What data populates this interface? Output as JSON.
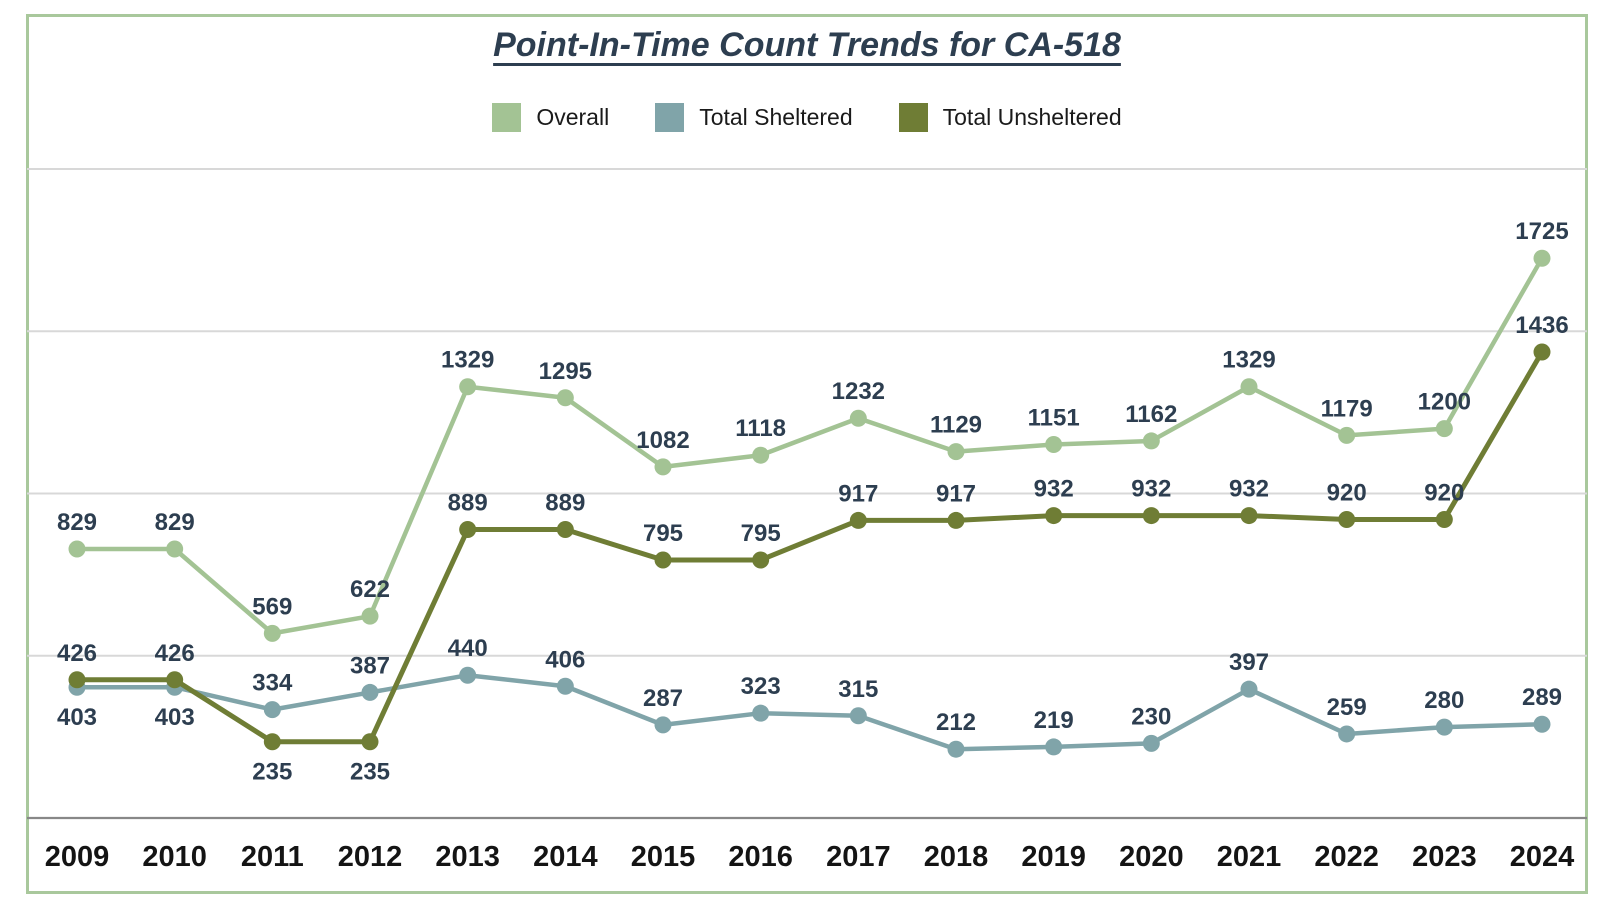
{
  "chart": {
    "title": "Point-In-Time Count Trends for CA-518"
  },
  "chart_data": {
    "type": "line",
    "title": "Point-In-Time Count Trends for CA-518",
    "categories": [
      "2009",
      "2010",
      "2011",
      "2012",
      "2013",
      "2014",
      "2015",
      "2016",
      "2017",
      "2018",
      "2019",
      "2020",
      "2021",
      "2022",
      "2023",
      "2024"
    ],
    "series": [
      {
        "name": "Overall",
        "color": "#a3c394",
        "values": [
          829,
          829,
          569,
          622,
          1329,
          1295,
          1082,
          1118,
          1232,
          1129,
          1151,
          1162,
          1329,
          1179,
          1200,
          1725
        ],
        "label_side": [
          "above",
          "above",
          "above",
          "above",
          "above",
          "above",
          "above",
          "above",
          "above",
          "above",
          "above",
          "above",
          "above",
          "above",
          "above",
          "above"
        ]
      },
      {
        "name": "Total Sheltered",
        "color": "#80a4a9",
        "values": [
          403,
          403,
          334,
          387,
          440,
          406,
          287,
          323,
          315,
          212,
          219,
          230,
          397,
          259,
          280,
          289
        ],
        "label_side": [
          "below",
          "below",
          "above",
          "above",
          "above",
          "above",
          "above",
          "above",
          "above",
          "above",
          "above",
          "above",
          "above",
          "above",
          "above",
          "above"
        ]
      },
      {
        "name": "Total Unsheltered",
        "color": "#6f7d35",
        "values": [
          426,
          426,
          235,
          235,
          889,
          889,
          795,
          795,
          917,
          917,
          932,
          932,
          932,
          920,
          920,
          1436
        ],
        "label_side": [
          "above",
          "above",
          "below",
          "below",
          "above",
          "above",
          "above",
          "above",
          "above",
          "above",
          "above",
          "above",
          "above",
          "above",
          "above",
          "above"
        ]
      }
    ],
    "xlabel": "",
    "ylabel": "",
    "ylim": [
      0,
      2000
    ],
    "gridline_values": [
      500,
      1000,
      1500,
      2000
    ],
    "grid": true,
    "y_axis_tick_labels_shown": false,
    "legend_position": "top",
    "data_labels_shown": true
  },
  "palette": {
    "title_text": "#2d3e50",
    "data_label_text": "#2d3e50",
    "year_label_text": "#141414",
    "gridline": "#d8d8d8",
    "axis_line": "#888888",
    "frame_border": "#a9c89c",
    "background": "#ffffff"
  }
}
